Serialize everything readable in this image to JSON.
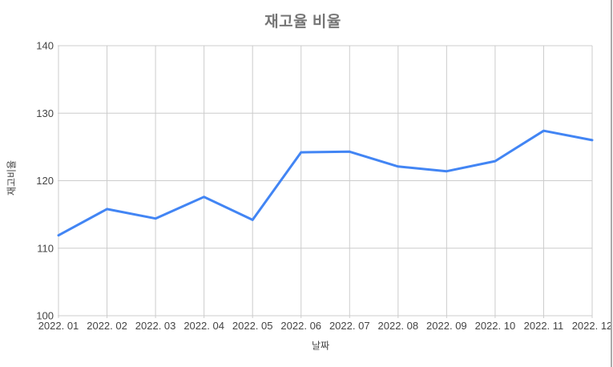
{
  "window": {
    "background_color": "#ffffff",
    "pane_divider_color": "#a9a9a9"
  },
  "chart_data": {
    "type": "line",
    "title": "재고율 비율",
    "xlabel": "날짜",
    "ylabel": "재고비율",
    "categories": [
      "2022. 01",
      "2022. 02",
      "2022. 03",
      "2022. 04",
      "2022. 05",
      "2022. 06",
      "2022. 07",
      "2022. 08",
      "2022. 09",
      "2022. 10",
      "2022. 11",
      "2022. 12"
    ],
    "series": [
      {
        "values": [
          111.9,
          115.8,
          114.4,
          117.6,
          114.2,
          124.2,
          124.3,
          122.1,
          121.4,
          122.9,
          127.4,
          126.0
        ],
        "color": "#4285f4",
        "line_width": 3
      }
    ],
    "ylim": [
      100,
      140
    ],
    "yticks": [
      100,
      110,
      120,
      130,
      140
    ],
    "grid": true,
    "grid_color": "#cccccc",
    "tick_label_color": "#444444",
    "axis_title_color": "#444444",
    "title_color": "#757575",
    "legend_position": "none",
    "markers": "none"
  }
}
